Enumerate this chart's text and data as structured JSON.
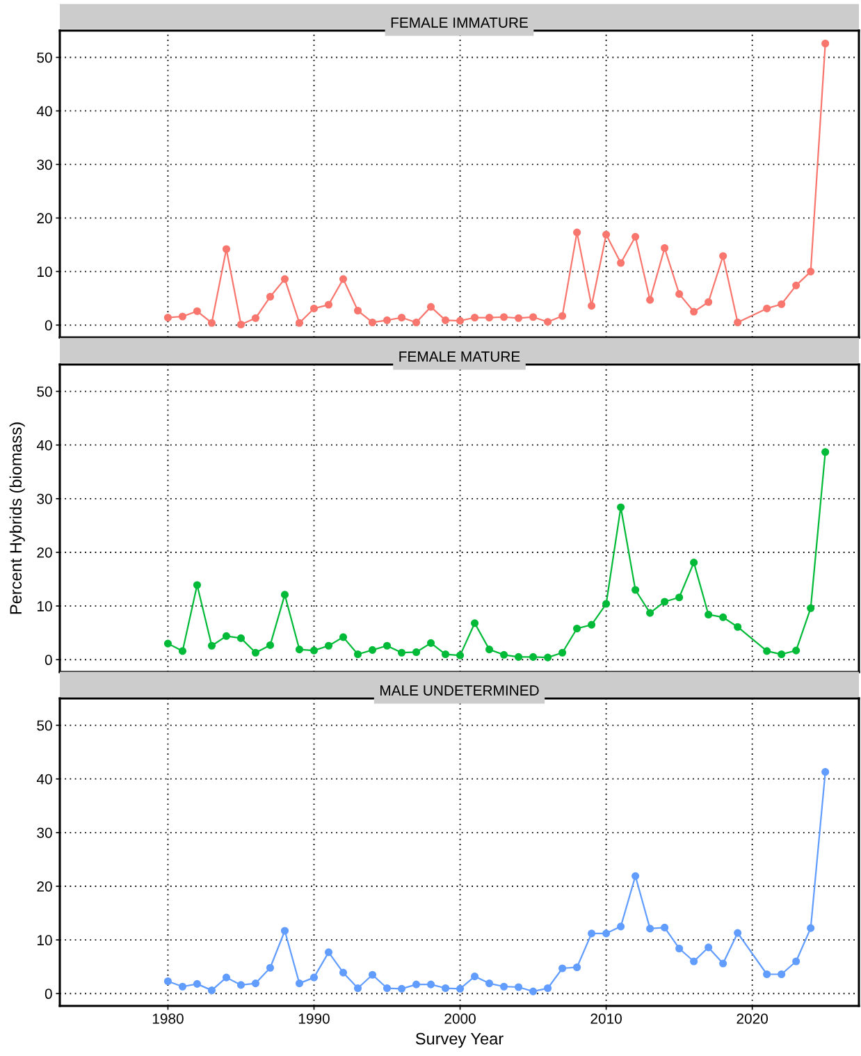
{
  "chart_data": [
    {
      "type": "line",
      "title": "FEMALE IMMATURE",
      "x": [
        1980,
        1981,
        1982,
        1983,
        1984,
        1985,
        1986,
        1987,
        1988,
        1989,
        1990,
        1991,
        1992,
        1993,
        1994,
        1995,
        1996,
        1997,
        1998,
        1999,
        2000,
        2001,
        2002,
        2003,
        2004,
        2005,
        2006,
        2007,
        2008,
        2009,
        2010,
        2011,
        2012,
        2013,
        2014,
        2015,
        2016,
        2017,
        2018,
        2019,
        2021,
        2022,
        2023,
        2024,
        2025
      ],
      "series": [
        {
          "color": "#f8766d",
          "values": [
            1.4,
            1.6,
            2.6,
            0.4,
            14.2,
            0.1,
            1.3,
            5.3,
            8.6,
            0.4,
            3.1,
            3.8,
            8.6,
            2.7,
            0.5,
            0.9,
            1.4,
            0.5,
            3.4,
            0.9,
            0.8,
            1.4,
            1.4,
            1.5,
            1.3,
            1.5,
            0.6,
            1.7,
            17.3,
            3.6,
            16.9,
            11.6,
            16.5,
            4.7,
            14.4,
            5.8,
            2.5,
            4.3,
            12.9,
            0.5,
            3.1,
            3.9,
            7.4,
            10.0,
            52.6
          ]
        }
      ],
      "xlim": [
        1972.6,
        2027.3
      ],
      "xticks": [
        1980,
        1990,
        2000,
        2010,
        2020
      ],
      "ylim": [
        -2.3,
        55
      ],
      "yticks": [
        0,
        10,
        20,
        30,
        40,
        50
      ],
      "tick_labels": "y",
      "grid": true,
      "marker": "circle",
      "line_style": "solid"
    },
    {
      "type": "line",
      "title": "FEMALE MATURE",
      "ylabel": "Percent Hybrids (biomass)",
      "x": [
        1980,
        1981,
        1982,
        1983,
        1984,
        1985,
        1986,
        1987,
        1988,
        1989,
        1990,
        1991,
        1992,
        1993,
        1994,
        1995,
        1996,
        1997,
        1998,
        1999,
        2000,
        2001,
        2002,
        2003,
        2004,
        2005,
        2006,
        2007,
        2008,
        2009,
        2010,
        2011,
        2012,
        2013,
        2014,
        2015,
        2016,
        2017,
        2018,
        2019,
        2021,
        2022,
        2023,
        2024,
        2025
      ],
      "series": [
        {
          "color": "#00ba38",
          "values": [
            3.0,
            1.6,
            13.9,
            2.6,
            4.4,
            4.0,
            1.3,
            2.7,
            12.1,
            1.9,
            1.7,
            2.6,
            4.2,
            1.0,
            1.8,
            2.6,
            1.3,
            1.4,
            3.1,
            1.0,
            0.8,
            6.8,
            1.9,
            0.9,
            0.5,
            0.5,
            0.4,
            1.3,
            5.8,
            6.5,
            10.4,
            28.4,
            13.0,
            8.7,
            10.8,
            11.6,
            18.1,
            8.4,
            7.9,
            6.1,
            1.6,
            1.0,
            1.7,
            9.6,
            38.7
          ]
        }
      ],
      "xlim": [
        1972.6,
        2027.3
      ],
      "xticks": [
        1980,
        1990,
        2000,
        2010,
        2020
      ],
      "ylim": [
        -2.3,
        55
      ],
      "yticks": [
        0,
        10,
        20,
        30,
        40,
        50
      ],
      "tick_labels": "y",
      "grid": true,
      "marker": "circle",
      "line_style": "solid"
    },
    {
      "type": "line",
      "title": "MALE UNDETERMINED",
      "xlabel": "Survey Year",
      "x": [
        1980,
        1981,
        1982,
        1983,
        1984,
        1985,
        1986,
        1987,
        1988,
        1989,
        1990,
        1991,
        1992,
        1993,
        1994,
        1995,
        1996,
        1997,
        1998,
        1999,
        2000,
        2001,
        2002,
        2003,
        2004,
        2005,
        2006,
        2007,
        2008,
        2009,
        2010,
        2011,
        2012,
        2013,
        2014,
        2015,
        2016,
        2017,
        2018,
        2019,
        2021,
        2022,
        2023,
        2024,
        2025
      ],
      "series": [
        {
          "color": "#619cff",
          "values": [
            2.3,
            1.3,
            1.8,
            0.6,
            3.0,
            1.6,
            1.9,
            4.8,
            11.7,
            1.9,
            3.0,
            7.7,
            3.9,
            1.0,
            3.5,
            1.0,
            0.9,
            1.7,
            1.7,
            1.0,
            0.9,
            3.2,
            1.9,
            1.3,
            1.2,
            0.4,
            1.0,
            4.7,
            4.9,
            11.2,
            11.2,
            12.5,
            21.9,
            12.1,
            12.3,
            8.4,
            6.0,
            8.6,
            5.6,
            11.3,
            3.6,
            3.6,
            6.0,
            12.2,
            41.3
          ]
        }
      ],
      "xlim": [
        1972.6,
        2027.3
      ],
      "xticks": [
        1980,
        1990,
        2000,
        2010,
        2020
      ],
      "ylim": [
        -2.3,
        55
      ],
      "yticks": [
        0,
        10,
        20,
        30,
        40,
        50
      ],
      "grid": true,
      "marker": "circle",
      "line_style": "solid"
    }
  ]
}
